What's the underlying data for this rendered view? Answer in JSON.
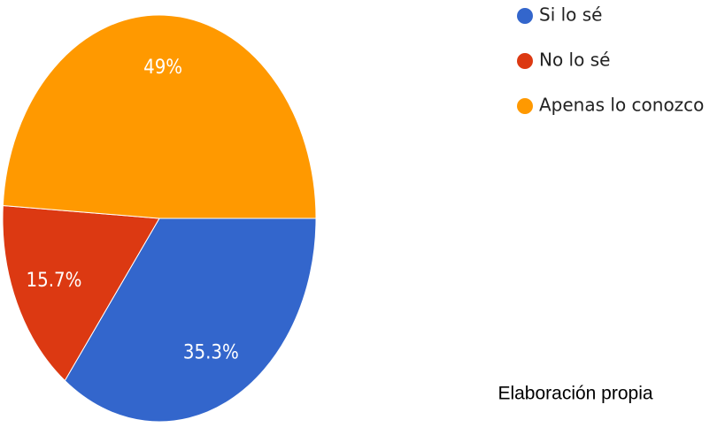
{
  "chart_data": {
    "type": "pie",
    "categories": [
      "Si lo sé",
      "No lo sé",
      "Apenas lo conozco"
    ],
    "values": [
      35.3,
      15.7,
      49
    ],
    "value_labels": [
      "35.3%",
      "15.7%",
      "49%"
    ],
    "colors": [
      "#3366cc",
      "#dc3912",
      "#ff9900"
    ],
    "legend": "right",
    "annotation": "Elaboración propia"
  }
}
